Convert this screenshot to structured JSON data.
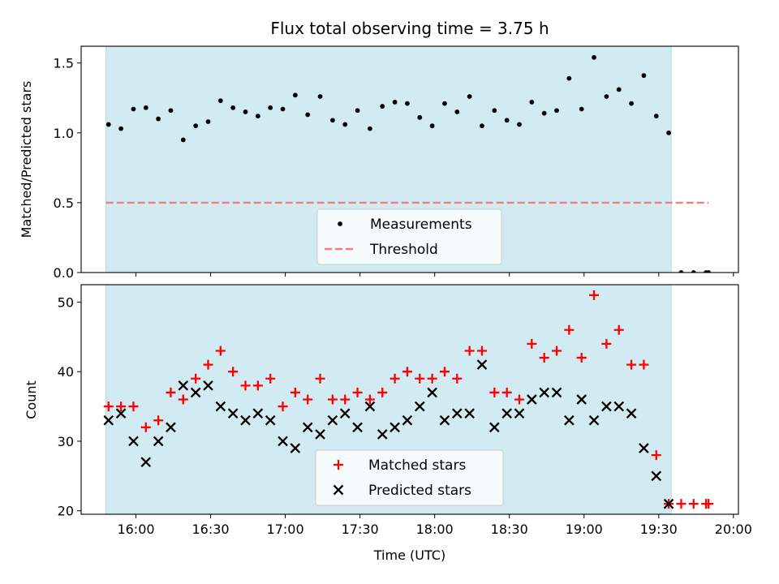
{
  "chart_data": [
    {
      "type": "scatter",
      "title": "Flux total observing time = 3.75 h",
      "xlabel": "",
      "ylabel": "Matched/Predicted stars",
      "xlim": [
        "15:38",
        "20:02"
      ],
      "ylim": [
        0,
        1.62
      ],
      "yticks": [
        0.0,
        0.5,
        1.0,
        1.5
      ],
      "ytick_labels": [
        "0.0",
        "0.5",
        "1.0",
        "1.5"
      ],
      "xticks": [
        "16:00",
        "16:30",
        "17:00",
        "17:30",
        "18:00",
        "18:30",
        "19:00",
        "19:30",
        "20:00"
      ],
      "shaded_span": [
        "15:48",
        "19:35"
      ],
      "shade_color": "#add8e6",
      "grid": false,
      "legend_position": "lower-center",
      "threshold": {
        "name": "Threshold",
        "y": 0.5,
        "x_range": [
          "15:48",
          "19:50"
        ],
        "color": "#f08080"
      },
      "series": [
        {
          "name": "Measurements",
          "color": "#000000",
          "x": [
            "15:49",
            "15:54",
            "15:59",
            "16:04",
            "16:09",
            "16:14",
            "16:19",
            "16:24",
            "16:29",
            "16:34",
            "16:39",
            "16:44",
            "16:49",
            "16:54",
            "16:59",
            "17:04",
            "17:09",
            "17:14",
            "17:19",
            "17:24",
            "17:29",
            "17:34",
            "17:39",
            "17:44",
            "17:49",
            "17:54",
            "17:59",
            "18:04",
            "18:09",
            "18:14",
            "18:19",
            "18:24",
            "18:29",
            "18:34",
            "18:39",
            "18:44",
            "18:49",
            "18:54",
            "18:59",
            "19:04",
            "19:09",
            "19:14",
            "19:19",
            "19:24",
            "19:29",
            "19:34",
            "19:39",
            "19:44",
            "19:49",
            "19:50"
          ],
          "y": [
            1.06,
            1.03,
            1.17,
            1.18,
            1.1,
            1.16,
            0.95,
            1.05,
            1.08,
            1.23,
            1.18,
            1.15,
            1.12,
            1.18,
            1.17,
            1.27,
            1.13,
            1.26,
            1.09,
            1.06,
            1.16,
            1.03,
            1.19,
            1.22,
            1.21,
            1.11,
            1.05,
            1.21,
            1.15,
            1.26,
            1.05,
            1.16,
            1.09,
            1.06,
            1.22,
            1.14,
            1.16,
            1.39,
            1.17,
            1.54,
            1.26,
            1.31,
            1.21,
            1.41,
            1.12,
            1.0,
            0.0,
            0.0,
            0.0,
            0.0
          ]
        }
      ]
    },
    {
      "type": "scatter",
      "title": "",
      "xlabel": "Time (UTC)",
      "ylabel": "Count",
      "xlim": [
        "15:38",
        "20:02"
      ],
      "ylim": [
        19.5,
        52.5
      ],
      "yticks": [
        20,
        30,
        40,
        50
      ],
      "ytick_labels": [
        "20",
        "30",
        "40",
        "50"
      ],
      "xticks": [
        "16:00",
        "16:30",
        "17:00",
        "17:30",
        "18:00",
        "18:30",
        "19:00",
        "19:30",
        "20:00"
      ],
      "shaded_span": [
        "15:48",
        "19:35"
      ],
      "shade_color": "#add8e6",
      "grid": false,
      "legend_position": "lower-center",
      "series": [
        {
          "name": "Matched stars",
          "marker": "plus",
          "color": "#ff0000",
          "x": [
            "15:49",
            "15:54",
            "15:59",
            "16:04",
            "16:09",
            "16:14",
            "16:19",
            "16:24",
            "16:29",
            "16:34",
            "16:39",
            "16:44",
            "16:49",
            "16:54",
            "16:59",
            "17:04",
            "17:09",
            "17:14",
            "17:19",
            "17:24",
            "17:29",
            "17:34",
            "17:39",
            "17:44",
            "17:49",
            "17:54",
            "17:59",
            "18:04",
            "18:09",
            "18:14",
            "18:19",
            "18:24",
            "18:29",
            "18:34",
            "18:39",
            "18:44",
            "18:49",
            "18:54",
            "18:59",
            "19:04",
            "19:09",
            "19:14",
            "19:19",
            "19:24",
            "19:29",
            "19:34",
            "19:39",
            "19:44",
            "19:49",
            "19:50"
          ],
          "y": [
            35,
            35,
            35,
            32,
            33,
            37,
            36,
            39,
            41,
            43,
            40,
            38,
            38,
            39,
            35,
            37,
            36,
            39,
            36,
            36,
            37,
            36,
            37,
            39,
            40,
            39,
            39,
            40,
            39,
            43,
            43,
            37,
            37,
            36,
            44,
            42,
            43,
            46,
            42,
            51,
            44,
            46,
            41,
            41,
            28,
            21,
            21,
            21,
            21,
            21
          ]
        },
        {
          "name": "Predicted stars",
          "marker": "x",
          "color": "#000000",
          "x": [
            "15:49",
            "15:54",
            "15:59",
            "16:04",
            "16:09",
            "16:14",
            "16:19",
            "16:24",
            "16:29",
            "16:34",
            "16:39",
            "16:44",
            "16:49",
            "16:54",
            "16:59",
            "17:04",
            "17:09",
            "17:14",
            "17:19",
            "17:24",
            "17:29",
            "17:34",
            "17:39",
            "17:44",
            "17:49",
            "17:54",
            "17:59",
            "18:04",
            "18:09",
            "18:14",
            "18:19",
            "18:24",
            "18:29",
            "18:34",
            "18:39",
            "18:44",
            "18:49",
            "18:54",
            "18:59",
            "19:04",
            "19:09",
            "19:14",
            "19:19",
            "19:24",
            "19:29",
            "19:34"
          ],
          "y": [
            33,
            34,
            30,
            27,
            30,
            32,
            38,
            37,
            38,
            35,
            34,
            33,
            34,
            33,
            30,
            29,
            32,
            31,
            33,
            34,
            32,
            35,
            31,
            32,
            33,
            35,
            37,
            33,
            34,
            34,
            41,
            32,
            34,
            34,
            36,
            37,
            37,
            33,
            36,
            33,
            35,
            35,
            34,
            29,
            25,
            21
          ]
        }
      ]
    }
  ]
}
